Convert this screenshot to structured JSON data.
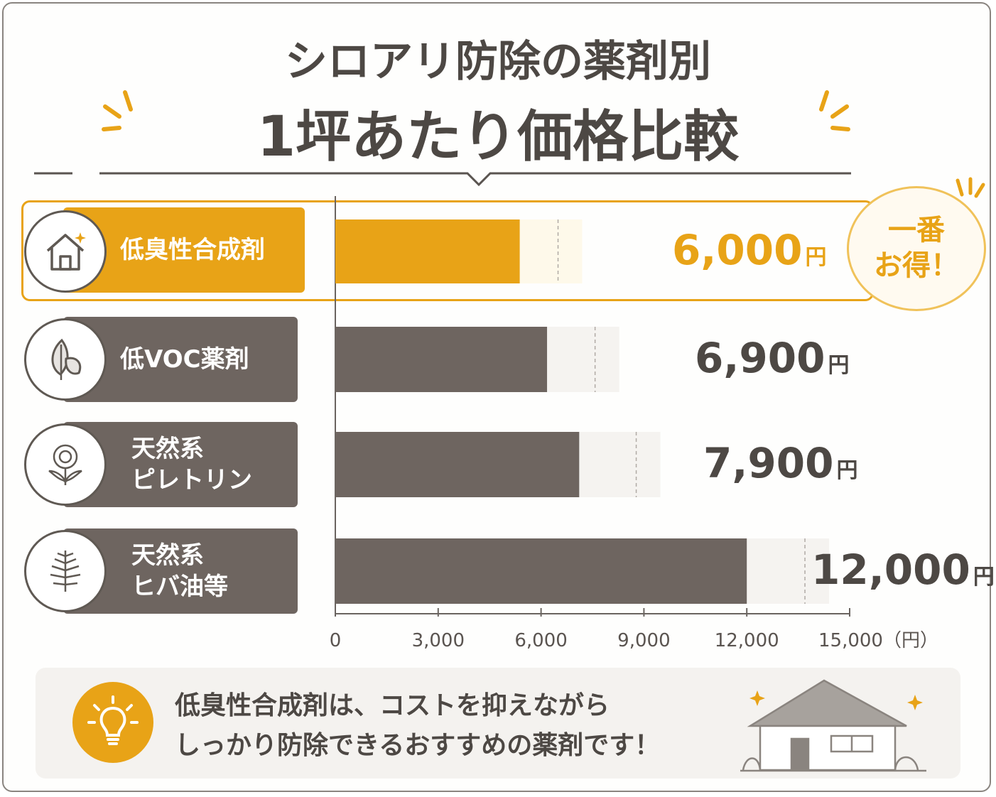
{
  "title": {
    "line1": "シロアリ防除の薬剤別",
    "line2": "1坪あたり価格比較"
  },
  "badge": {
    "text": "一番\nお得！"
  },
  "colors": {
    "accent": "#e8a317",
    "bar": "#6e6560",
    "accentLight": "#fef9ea",
    "barLight": "#f5f3f0"
  },
  "chart_data": {
    "type": "bar",
    "orientation": "horizontal",
    "categories": [
      "低臭性合成剤",
      "低VOC薬剤",
      "天然系\nピレトリン",
      "天然系\nヒバ油等"
    ],
    "icons": [
      "house-icon",
      "leaf-icon",
      "flower-icon",
      "cypress-icon"
    ],
    "values": [
      6000,
      6900,
      7900,
      12000
    ],
    "value_labels": [
      "6,000",
      "6,900",
      "7,900",
      "12,000"
    ],
    "value_unit": "円",
    "xlim": [
      0,
      15000
    ],
    "x_ticks": [
      "0",
      "3,000",
      "6,000",
      "9,000",
      "12,000",
      "15,000（円）"
    ],
    "x_tick_values": [
      0,
      3000,
      6000,
      9000,
      12000,
      15000
    ],
    "highlight_index": 0
  },
  "tip": {
    "line1": "低臭性合成剤は、コストを抑えながら",
    "line2": "しっかり防除できるおすすめの薬剤です！"
  }
}
